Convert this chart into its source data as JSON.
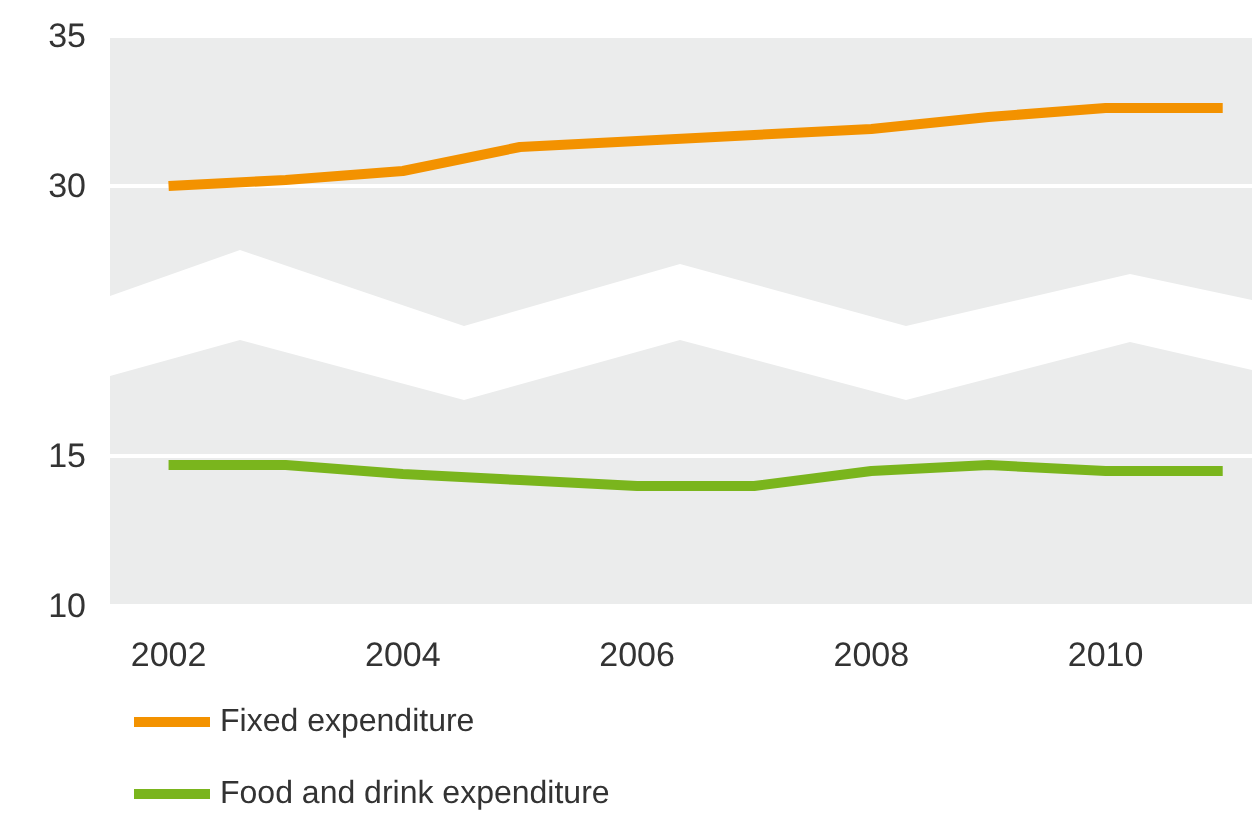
{
  "chart_data": [
    {
      "type": "line",
      "x": [
        2002,
        2003,
        2004,
        2005,
        2006,
        2007,
        2008,
        2009,
        2010,
        2011
      ],
      "series": [
        {
          "name": "Fixed expenditure",
          "color": "#f39200",
          "values": [
            30.0,
            30.2,
            30.5,
            31.3,
            31.5,
            31.7,
            31.9,
            32.3,
            32.6,
            32.6
          ]
        }
      ],
      "xlim": [
        2001.5,
        2011.25
      ],
      "xticks": [
        2002,
        2004,
        2006,
        2008,
        2010
      ],
      "ylim": [
        26,
        35
      ],
      "yticks": [
        30,
        35
      ],
      "tick_labels": "y",
      "grid": "y",
      "legend": "bottom left",
      "marker": "none",
      "line_style": "solid"
    },
    {
      "type": "line",
      "x": [
        2002,
        2003,
        2004,
        2005,
        2006,
        2007,
        2008,
        2009,
        2010,
        2011
      ],
      "series": [
        {
          "name": "Food and drink expenditure",
          "color": "#7ab51d",
          "values": [
            14.7,
            14.7,
            14.4,
            14.2,
            14.0,
            14.0,
            14.5,
            14.7,
            14.5,
            14.5
          ]
        }
      ],
      "xlim": [
        2001.5,
        2011.25
      ],
      "xticks": [
        2002,
        2004,
        2006,
        2008,
        2010
      ],
      "ylim": [
        10,
        20
      ],
      "yticks": [
        10,
        15
      ],
      "grid": "y",
      "legend": "bottom left",
      "marker": "none",
      "line_style": "solid"
    }
  ]
}
